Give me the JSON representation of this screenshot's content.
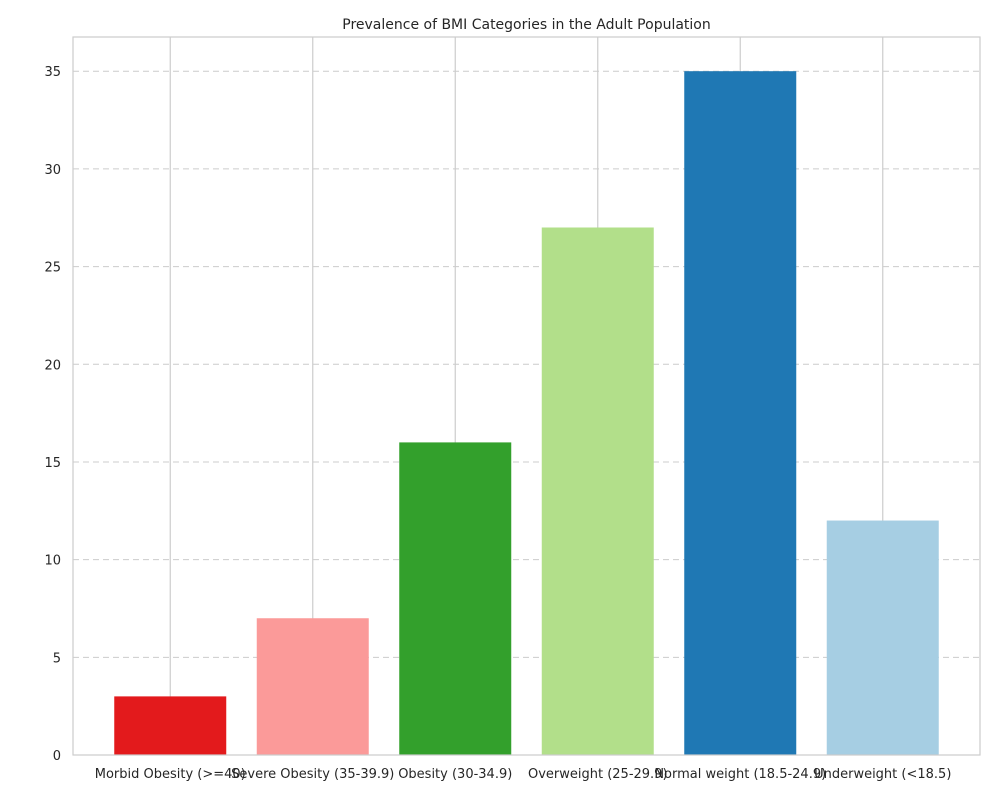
{
  "chart_data": {
    "type": "bar",
    "title": "Prevalence of BMI Categories in the Adult Population",
    "xlabel": "",
    "ylabel": "",
    "categories": [
      "Morbid Obesity (>=40)",
      "Severe Obesity (35-39.9)",
      "Obesity (30-34.9)",
      "Overweight (25-29.9)",
      "Normal weight (18.5-24.9)",
      "Underweight (<18.5)"
    ],
    "values": [
      3,
      7,
      16,
      27,
      35,
      12
    ],
    "colors": [
      "#e31a1c",
      "#fb9a99",
      "#33a02c",
      "#b2df8a",
      "#1f78b4",
      "#a6cee3"
    ],
    "ylim": [
      0,
      36.75
    ],
    "yticks": [
      0,
      5,
      10,
      15,
      20,
      25,
      30,
      35
    ],
    "grid": {
      "vertical": true,
      "horizontal_dashed": true
    },
    "legend": "none"
  }
}
